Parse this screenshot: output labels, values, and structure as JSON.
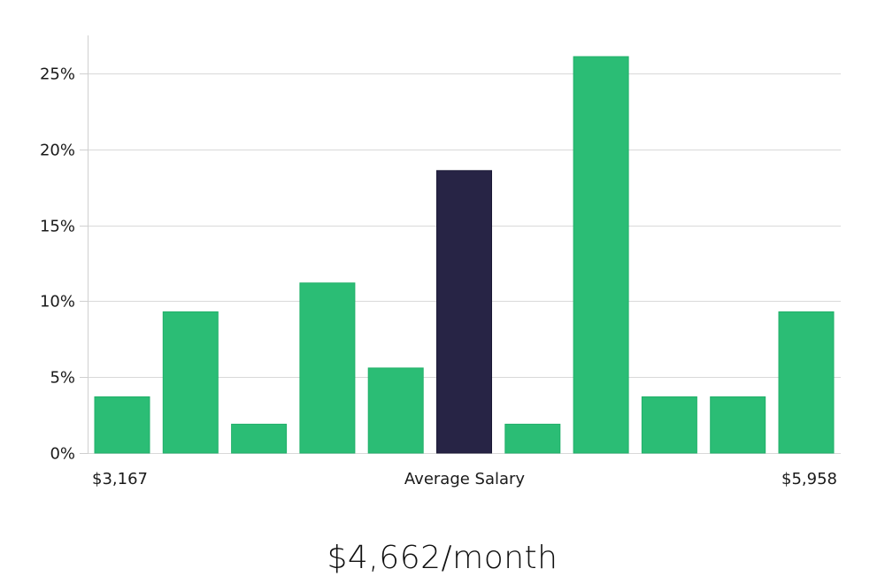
{
  "chart_data": {
    "type": "bar",
    "values": [
      3.7,
      9.3,
      1.9,
      11.2,
      5.6,
      18.6,
      1.9,
      26.1,
      3.7,
      3.7,
      9.3
    ],
    "highlight_index": 5,
    "ylim": [
      0,
      27.5
    ],
    "yticks": [
      0,
      5,
      10,
      15,
      20,
      25
    ],
    "ytick_suffix": "%",
    "x_labels": {
      "left": "$3,167",
      "center": "Average Salary",
      "right": "$5,958"
    },
    "grid": true,
    "colors": {
      "bar": "#2bbd75",
      "highlight": "#272445",
      "grid": "#d9d9d9"
    }
  },
  "summary": {
    "average_text": "$4,662/month"
  }
}
